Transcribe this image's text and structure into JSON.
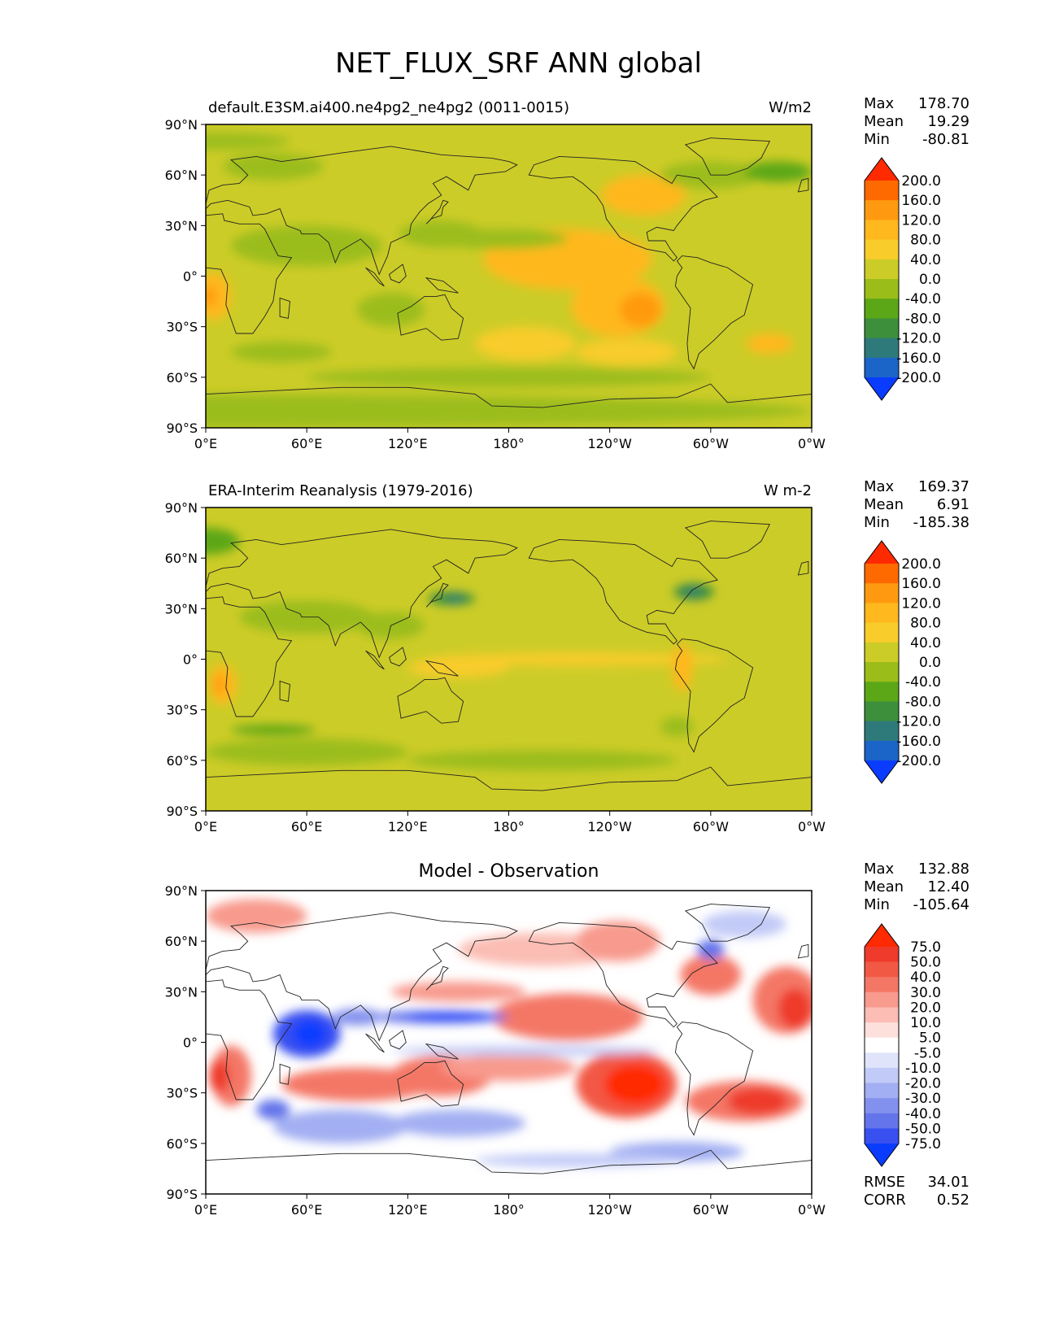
{
  "title": "NET_FLUX_SRF ANN global",
  "lat_ticks": [
    "90°N",
    "60°N",
    "30°N",
    "0°",
    "30°S",
    "60°S",
    "90°S"
  ],
  "lon_ticks": [
    "0°E",
    "60°E",
    "120°E",
    "180°",
    "120°W",
    "60°W",
    "0°W"
  ],
  "panels": [
    {
      "id": "model",
      "left_title": "default.E3SM.ai400.ne4pg2_ne4pg2 (0011-0015)",
      "center_title": "",
      "units": "W/m2",
      "stats": [
        {
          "label": "Max",
          "value": "178.70"
        },
        {
          "label": "Mean",
          "value": "19.29"
        },
        {
          "label": "Min",
          "value": "-80.81"
        }
      ],
      "colorbar": {
        "levels": [
          "200.0",
          "160.0",
          "120.0",
          "80.0",
          "40.0",
          "0.0",
          "-40.0",
          "-80.0",
          "-120.0",
          "-160.0",
          "-200.0"
        ],
        "colors": [
          "#ff2a00",
          "#ff6a00",
          "#ff9a10",
          "#ffb81e",
          "#f8cc2a",
          "#cccc28",
          "#9bbd1a",
          "#5ca717",
          "#3d8f3c",
          "#2e7a7a",
          "#1b64c8",
          "#0a3cff"
        ]
      }
    },
    {
      "id": "obs",
      "left_title": "ERA-Interim Reanalysis (1979-2016)",
      "center_title": "",
      "units": "W m-2",
      "stats": [
        {
          "label": "Max",
          "value": "169.37"
        },
        {
          "label": "Mean",
          "value": "6.91"
        },
        {
          "label": "Min",
          "value": "-185.38"
        }
      ],
      "colorbar": {
        "levels": [
          "200.0",
          "160.0",
          "120.0",
          "80.0",
          "40.0",
          "0.0",
          "-40.0",
          "-80.0",
          "-120.0",
          "-160.0",
          "-200.0"
        ],
        "colors": [
          "#ff2a00",
          "#ff6a00",
          "#ff9a10",
          "#ffb81e",
          "#f8cc2a",
          "#cccc28",
          "#9bbd1a",
          "#5ca717",
          "#3d8f3c",
          "#2e7a7a",
          "#1b64c8",
          "#0a3cff"
        ]
      }
    },
    {
      "id": "diff",
      "left_title": "",
      "center_title": "Model - Observation",
      "units": "",
      "stats": [
        {
          "label": "Max",
          "value": "132.88"
        },
        {
          "label": "Mean",
          "value": "12.40"
        },
        {
          "label": "Min",
          "value": "-105.64"
        }
      ],
      "colorbar": {
        "levels": [
          "75.0",
          "50.0",
          "40.0",
          "30.0",
          "20.0",
          "10.0",
          "5.0",
          "-5.0",
          "-10.0",
          "-20.0",
          "-30.0",
          "-40.0",
          "-50.0",
          "-75.0"
        ],
        "colors": [
          "#ff2a00",
          "#ee3b2b",
          "#f25945",
          "#f47766",
          "#f89a8d",
          "#fbbdb4",
          "#fde0dc",
          "#ffffff",
          "#dfe4fb",
          "#c2cbf7",
          "#a2aff2",
          "#8391ee",
          "#6474ea",
          "#3850f0",
          "#0a3cff"
        ]
      },
      "footer_stats": [
        {
          "label": "RMSE",
          "value": "34.01"
        },
        {
          "label": "CORR",
          "value": "0.52"
        }
      ]
    }
  ],
  "colors": {
    "model_land": "#cccc28",
    "obs_land": "#cccc28",
    "diff_background": "#ffffff",
    "coastline": "#222222"
  },
  "chart_data": [
    {
      "type": "heatmap",
      "panel": "model",
      "title": "default.E3SM.ai400.ne4pg2_ne4pg2 (0011-0015)",
      "variable": "NET_FLUX_SRF",
      "units": "W/m2",
      "xlim": [
        0,
        360
      ],
      "ylim": [
        -90,
        90
      ],
      "xticks": [
        "0°E",
        "60°E",
        "120°E",
        "180°",
        "120°W",
        "60°W",
        "0°W"
      ],
      "yticks": [
        "90°N",
        "60°N",
        "30°N",
        "0°",
        "30°S",
        "60°S",
        "90°S"
      ],
      "stats": {
        "max": 178.7,
        "mean": 19.29,
        "min": -80.81
      },
      "levels": [
        -200,
        -160,
        -120,
        -80,
        -40,
        0,
        40,
        80,
        120,
        160,
        200
      ]
    },
    {
      "type": "heatmap",
      "panel": "obs",
      "title": "ERA-Interim Reanalysis (1979-2016)",
      "variable": "NET_FLUX_SRF",
      "units": "W m-2",
      "xlim": [
        0,
        360
      ],
      "ylim": [
        -90,
        90
      ],
      "stats": {
        "max": 169.37,
        "mean": 6.91,
        "min": -185.38
      },
      "levels": [
        -200,
        -160,
        -120,
        -80,
        -40,
        0,
        40,
        80,
        120,
        160,
        200
      ]
    },
    {
      "type": "heatmap",
      "panel": "diff",
      "title": "Model - Observation",
      "xlim": [
        0,
        360
      ],
      "ylim": [
        -90,
        90
      ],
      "stats": {
        "max": 132.88,
        "mean": 12.4,
        "min": -105.64,
        "rmse": 34.01,
        "corr": 0.52
      },
      "levels": [
        -75,
        -50,
        -40,
        -30,
        -20,
        -10,
        -5,
        5,
        10,
        20,
        30,
        40,
        50,
        75
      ]
    }
  ]
}
